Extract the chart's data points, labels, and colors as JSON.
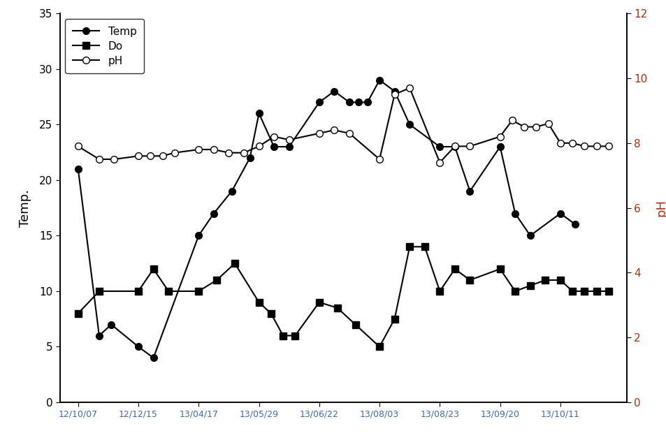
{
  "x_labels": [
    "12/10/07",
    "12/12/15",
    "13/04/17",
    "13/05/29",
    "13/06/22",
    "13/08/03",
    "13/08/23",
    "13/09/20",
    "13/10/11"
  ],
  "tick_x": [
    0,
    1,
    2,
    3,
    4,
    5,
    6,
    7,
    8
  ],
  "temp_x": [
    0,
    0.35,
    0.55,
    1.0,
    1.25,
    2.0,
    2.25,
    2.55,
    2.85,
    3.0,
    3.25,
    3.5,
    4.0,
    4.25,
    4.5,
    4.65,
    4.8,
    5.0,
    5.25,
    5.5,
    6.0,
    6.25,
    6.5,
    7.0,
    7.25,
    7.5,
    8.0,
    8.25
  ],
  "temp_v": [
    21,
    6,
    7,
    5,
    4,
    15,
    17,
    19,
    22,
    26,
    23,
    23,
    27,
    28,
    27,
    27,
    27,
    29,
    28,
    25,
    23,
    23,
    19,
    23,
    17,
    15,
    17,
    16
  ],
  "do_x": [
    0,
    0.35,
    1.0,
    1.25,
    1.5,
    2.0,
    2.3,
    2.6,
    3.0,
    3.2,
    3.4,
    3.6,
    4.0,
    4.3,
    4.6,
    5.0,
    5.25,
    5.5,
    5.75,
    6.0,
    6.25,
    6.5,
    7.0,
    7.25,
    7.5,
    7.75,
    8.0,
    8.2,
    8.4,
    8.6,
    8.8
  ],
  "do_v": [
    8,
    10,
    10,
    12,
    10,
    10,
    11,
    12.5,
    9,
    8,
    6,
    6,
    9,
    8.5,
    7,
    5,
    7.5,
    14,
    14,
    10,
    12,
    11,
    12,
    10,
    10.5,
    11,
    11,
    10,
    10,
    10,
    10
  ],
  "ph_x": [
    0,
    0.35,
    0.6,
    1.0,
    1.2,
    1.4,
    1.6,
    2.0,
    2.25,
    2.5,
    2.75,
    3.0,
    3.25,
    3.5,
    4.0,
    4.25,
    4.5,
    5.0,
    5.25,
    5.5,
    6.0,
    6.25,
    6.5,
    7.0,
    7.2,
    7.4,
    7.6,
    7.8,
    8.0,
    8.2,
    8.4,
    8.6,
    8.8
  ],
  "ph_v": [
    7.9,
    7.5,
    7.5,
    7.6,
    7.6,
    7.6,
    7.7,
    7.8,
    7.8,
    7.7,
    7.7,
    7.9,
    8.2,
    8.1,
    8.3,
    8.4,
    8.3,
    7.5,
    9.5,
    9.7,
    7.4,
    7.9,
    7.9,
    8.2,
    8.7,
    8.5,
    8.5,
    8.6,
    8.0,
    8.0,
    7.9,
    7.9,
    7.9
  ],
  "ylabel_left": "Temp.",
  "ylabel_right": "pH",
  "ylim_left": [
    0,
    35
  ],
  "ylim_right": [
    0,
    12
  ],
  "yticks_left": [
    0,
    5,
    10,
    15,
    20,
    25,
    30,
    35
  ],
  "yticks_right": [
    0,
    2,
    4,
    6,
    8,
    10,
    12
  ],
  "xtick_color": "#4169b0",
  "ytick_right_color": "#b03010",
  "bg_color": "#ffffff",
  "line_color": "#000000",
  "legend_labels": [
    "Temp",
    "Do",
    "pH"
  ],
  "xlim": [
    -0.3,
    9.1
  ],
  "figsize": [
    9.54,
    6.4
  ],
  "dpi": 100
}
